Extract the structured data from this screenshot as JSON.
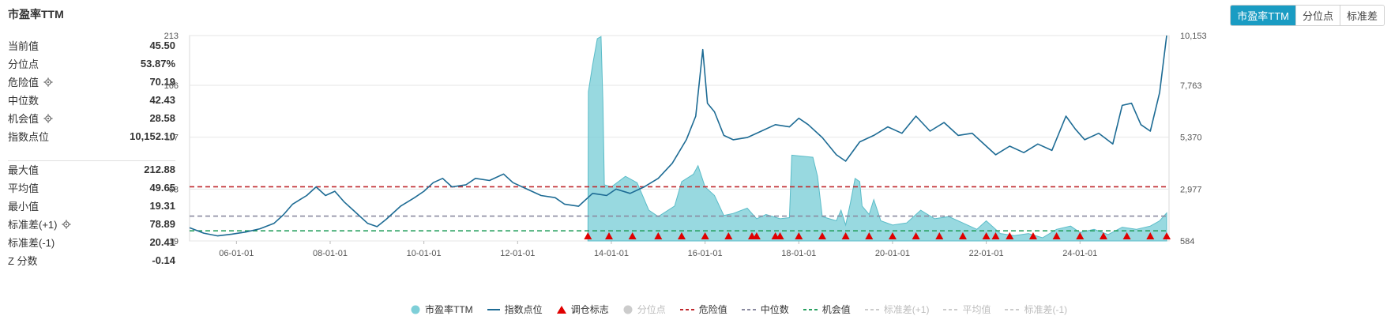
{
  "title": "市盈率TTM",
  "toggles": [
    {
      "label": "市盈率TTM",
      "active": true
    },
    {
      "label": "分位点",
      "active": false
    },
    {
      "label": "标准差",
      "active": false
    }
  ],
  "stats_top": [
    {
      "label": "当前值",
      "value": "45.50",
      "gear": false
    },
    {
      "label": "分位点",
      "value": "53.87%",
      "gear": false
    },
    {
      "label": "危险值",
      "value": "70.19",
      "gear": true
    },
    {
      "label": "中位数",
      "value": "42.43",
      "gear": false
    },
    {
      "label": "机会值",
      "value": "28.58",
      "gear": true
    },
    {
      "label": "指数点位",
      "value": "10,152.10",
      "gear": false
    }
  ],
  "stats_bottom": [
    {
      "label": "最大值",
      "value": "212.88",
      "gear": false
    },
    {
      "label": "平均值",
      "value": "49.65",
      "gear": false
    },
    {
      "label": "最小值",
      "value": "19.31",
      "gear": false
    },
    {
      "label": "标准差(+1)",
      "value": "78.89",
      "gear": true
    },
    {
      "label": "标准差(-1)",
      "value": "20.41",
      "gear": false
    },
    {
      "label": "Z 分数",
      "value": "-0.14",
      "gear": false
    }
  ],
  "legend": [
    {
      "label": "市盈率TTM",
      "symbol": "circle",
      "color": "#7ecfd8",
      "enabled": true
    },
    {
      "label": "指数点位",
      "symbol": "line",
      "color": "#1d6b94",
      "enabled": true
    },
    {
      "label": "调仓标志",
      "symbol": "triangle",
      "color": "#e00000",
      "enabled": true
    },
    {
      "label": "分位点",
      "symbol": "circle",
      "color": "#cccccc",
      "enabled": false
    },
    {
      "label": "危险值",
      "symbol": "dash",
      "color": "#c0282d",
      "enabled": true
    },
    {
      "label": "中位数",
      "symbol": "dash",
      "color": "#8a8aa0",
      "enabled": true
    },
    {
      "label": "机会值",
      "symbol": "dash",
      "color": "#28a060",
      "enabled": true
    },
    {
      "label": "标准差(+1)",
      "symbol": "dash",
      "color": "#cccccc",
      "enabled": false
    },
    {
      "label": "平均值",
      "symbol": "dash",
      "color": "#cccccc",
      "enabled": false
    },
    {
      "label": "标准差(-1)",
      "symbol": "dash",
      "color": "#cccccc",
      "enabled": false
    }
  ],
  "chart_data": {
    "type": "area",
    "x_ticks": [
      "06-01-01",
      "08-01-01",
      "10-01-01",
      "12-01-01",
      "14-01-01",
      "16-01-01",
      "18-01-01",
      "20-01-01",
      "22-01-01",
      "24-01-01"
    ],
    "y_left_ticks": [
      "19",
      "68",
      "117",
      "166",
      "213"
    ],
    "y_left_range": [
      19,
      213
    ],
    "y_right_ticks": [
      "584",
      "2,977",
      "5,370",
      "7,763",
      "10,153"
    ],
    "y_right_range": [
      584,
      10153
    ],
    "x_range": [
      2005.0,
      2025.9
    ],
    "reference_lines": [
      {
        "name": "危险值",
        "value": 70.19,
        "color": "#c0282d"
      },
      {
        "name": "中位数",
        "value": 42.43,
        "color": "#8a8aa0"
      },
      {
        "name": "机会值",
        "value": 28.58,
        "color": "#28a060"
      }
    ],
    "series": [
      {
        "name": "市盈率TTM",
        "color": "#7ecfd8",
        "points": [
          [
            2013.5,
            19
          ],
          [
            2013.51,
            160
          ],
          [
            2013.6,
            185
          ],
          [
            2013.7,
            210
          ],
          [
            2013.78,
            212
          ],
          [
            2013.82,
            150
          ],
          [
            2013.85,
            72
          ],
          [
            2014.0,
            70
          ],
          [
            2014.3,
            80
          ],
          [
            2014.55,
            74
          ],
          [
            2014.8,
            48
          ],
          [
            2015.0,
            42
          ],
          [
            2015.35,
            52
          ],
          [
            2015.5,
            75
          ],
          [
            2015.75,
            82
          ],
          [
            2015.85,
            90
          ],
          [
            2016.0,
            70
          ],
          [
            2016.2,
            62
          ],
          [
            2016.4,
            43
          ],
          [
            2016.6,
            45
          ],
          [
            2016.9,
            50
          ],
          [
            2017.1,
            40
          ],
          [
            2017.3,
            44
          ],
          [
            2017.6,
            40
          ],
          [
            2017.8,
            41
          ],
          [
            2017.85,
            100
          ],
          [
            2018.3,
            98
          ],
          [
            2018.4,
            80
          ],
          [
            2018.5,
            42
          ],
          [
            2018.8,
            38
          ],
          [
            2018.9,
            48
          ],
          [
            2019.0,
            34
          ],
          [
            2019.1,
            55
          ],
          [
            2019.2,
            78
          ],
          [
            2019.3,
            75
          ],
          [
            2019.35,
            52
          ],
          [
            2019.5,
            44
          ],
          [
            2019.6,
            58
          ],
          [
            2019.75,
            38
          ],
          [
            2020.0,
            34
          ],
          [
            2020.3,
            36
          ],
          [
            2020.6,
            48
          ],
          [
            2020.9,
            40
          ],
          [
            2021.2,
            42
          ],
          [
            2021.5,
            36
          ],
          [
            2021.8,
            30
          ],
          [
            2022.0,
            38
          ],
          [
            2022.3,
            26
          ],
          [
            2022.6,
            24
          ],
          [
            2022.9,
            26
          ],
          [
            2023.2,
            22
          ],
          [
            2023.5,
            30
          ],
          [
            2023.8,
            33
          ],
          [
            2024.0,
            27
          ],
          [
            2024.3,
            30
          ],
          [
            2024.6,
            25
          ],
          [
            2024.9,
            32
          ],
          [
            2025.2,
            30
          ],
          [
            2025.5,
            33
          ],
          [
            2025.7,
            38
          ],
          [
            2025.85,
            45.5
          ]
        ]
      },
      {
        "name": "指数点位",
        "color": "#1d6b94",
        "points": [
          [
            2005.0,
            1200
          ],
          [
            2005.3,
            950
          ],
          [
            2005.6,
            820
          ],
          [
            2005.9,
            900
          ],
          [
            2006.2,
            1000
          ],
          [
            2006.5,
            1150
          ],
          [
            2006.8,
            1400
          ],
          [
            2007.0,
            1800
          ],
          [
            2007.2,
            2300
          ],
          [
            2007.5,
            2700
          ],
          [
            2007.7,
            3100
          ],
          [
            2007.9,
            2700
          ],
          [
            2008.1,
            2900
          ],
          [
            2008.3,
            2400
          ],
          [
            2008.5,
            2000
          ],
          [
            2008.8,
            1400
          ],
          [
            2009.0,
            1250
          ],
          [
            2009.2,
            1600
          ],
          [
            2009.5,
            2200
          ],
          [
            2009.8,
            2600
          ],
          [
            2010.0,
            2900
          ],
          [
            2010.2,
            3300
          ],
          [
            2010.4,
            3500
          ],
          [
            2010.6,
            3100
          ],
          [
            2010.9,
            3200
          ],
          [
            2011.1,
            3500
          ],
          [
            2011.4,
            3400
          ],
          [
            2011.7,
            3700
          ],
          [
            2011.9,
            3300
          ],
          [
            2012.2,
            3000
          ],
          [
            2012.5,
            2700
          ],
          [
            2012.8,
            2600
          ],
          [
            2013.0,
            2300
          ],
          [
            2013.3,
            2200
          ],
          [
            2013.6,
            2800
          ],
          [
            2013.9,
            2700
          ],
          [
            2014.1,
            3000
          ],
          [
            2014.4,
            2800
          ],
          [
            2014.7,
            3100
          ],
          [
            2015.0,
            3500
          ],
          [
            2015.3,
            4200
          ],
          [
            2015.6,
            5300
          ],
          [
            2015.8,
            6400
          ],
          [
            2015.95,
            9500
          ],
          [
            2016.05,
            7000
          ],
          [
            2016.2,
            6600
          ],
          [
            2016.4,
            5500
          ],
          [
            2016.6,
            5300
          ],
          [
            2016.9,
            5400
          ],
          [
            2017.2,
            5700
          ],
          [
            2017.5,
            6000
          ],
          [
            2017.8,
            5900
          ],
          [
            2018.0,
            6300
          ],
          [
            2018.2,
            6000
          ],
          [
            2018.5,
            5400
          ],
          [
            2018.8,
            4600
          ],
          [
            2019.0,
            4300
          ],
          [
            2019.3,
            5200
          ],
          [
            2019.6,
            5500
          ],
          [
            2019.9,
            5900
          ],
          [
            2020.2,
            5600
          ],
          [
            2020.5,
            6400
          ],
          [
            2020.8,
            5700
          ],
          [
            2021.1,
            6100
          ],
          [
            2021.4,
            5500
          ],
          [
            2021.7,
            5600
          ],
          [
            2021.9,
            5200
          ],
          [
            2022.2,
            4600
          ],
          [
            2022.5,
            5000
          ],
          [
            2022.8,
            4700
          ],
          [
            2023.1,
            5100
          ],
          [
            2023.4,
            4800
          ],
          [
            2023.7,
            6400
          ],
          [
            2023.9,
            5800
          ],
          [
            2024.1,
            5300
          ],
          [
            2024.4,
            5600
          ],
          [
            2024.7,
            5100
          ],
          [
            2024.9,
            6900
          ],
          [
            2025.1,
            7000
          ],
          [
            2025.3,
            6000
          ],
          [
            2025.5,
            5700
          ],
          [
            2025.7,
            7500
          ],
          [
            2025.85,
            10152
          ]
        ]
      }
    ],
    "signals": [
      2013.5,
      2013.95,
      2014.45,
      2015.0,
      2015.5,
      2016.0,
      2016.5,
      2017.0,
      2017.1,
      2017.5,
      2017.6,
      2018.0,
      2018.5,
      2019.0,
      2019.5,
      2020.0,
      2020.5,
      2021.0,
      2021.5,
      2022.0,
      2022.2,
      2022.5,
      2023.0,
      2023.5,
      2024.0,
      2024.5,
      2025.0,
      2025.5,
      2025.85
    ]
  }
}
